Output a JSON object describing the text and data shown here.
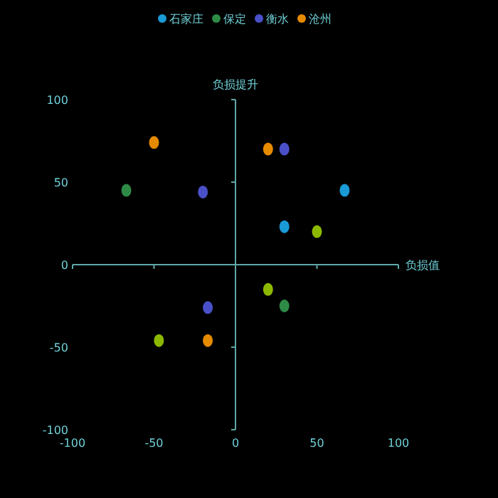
{
  "chart_data": {
    "type": "scatter",
    "xlabel": "负损值",
    "ylabel": "负损提升",
    "xlim": [
      -100,
      100
    ],
    "ylim": [
      -100,
      100
    ],
    "xticks": [
      -100,
      -50,
      0,
      50,
      100
    ],
    "yticks": [
      -100,
      -50,
      0,
      50,
      100
    ],
    "legend": "top",
    "marker": "circle",
    "series": [
      {
        "name": "石家庄",
        "color": "#1a9ad6",
        "x": [
          67,
          30
        ],
        "values": [
          45,
          23
        ]
      },
      {
        "name": "保定",
        "color": "#2e8b46",
        "x": [
          -67,
          30
        ],
        "values": [
          45,
          -25
        ]
      },
      {
        "name": "衡水",
        "color": "#4a50c8",
        "x": [
          30,
          -20,
          -17
        ],
        "values": [
          70,
          44,
          -26
        ]
      },
      {
        "name": "沧州",
        "color": "#e68a00",
        "x": [
          -50,
          20,
          -17
        ],
        "values": [
          74,
          70,
          -46
        ]
      },
      {
        "color": "#8db800",
        "x": [
          50,
          20,
          -47
        ],
        "values": [
          20,
          -15,
          -46
        ]
      }
    ]
  }
}
